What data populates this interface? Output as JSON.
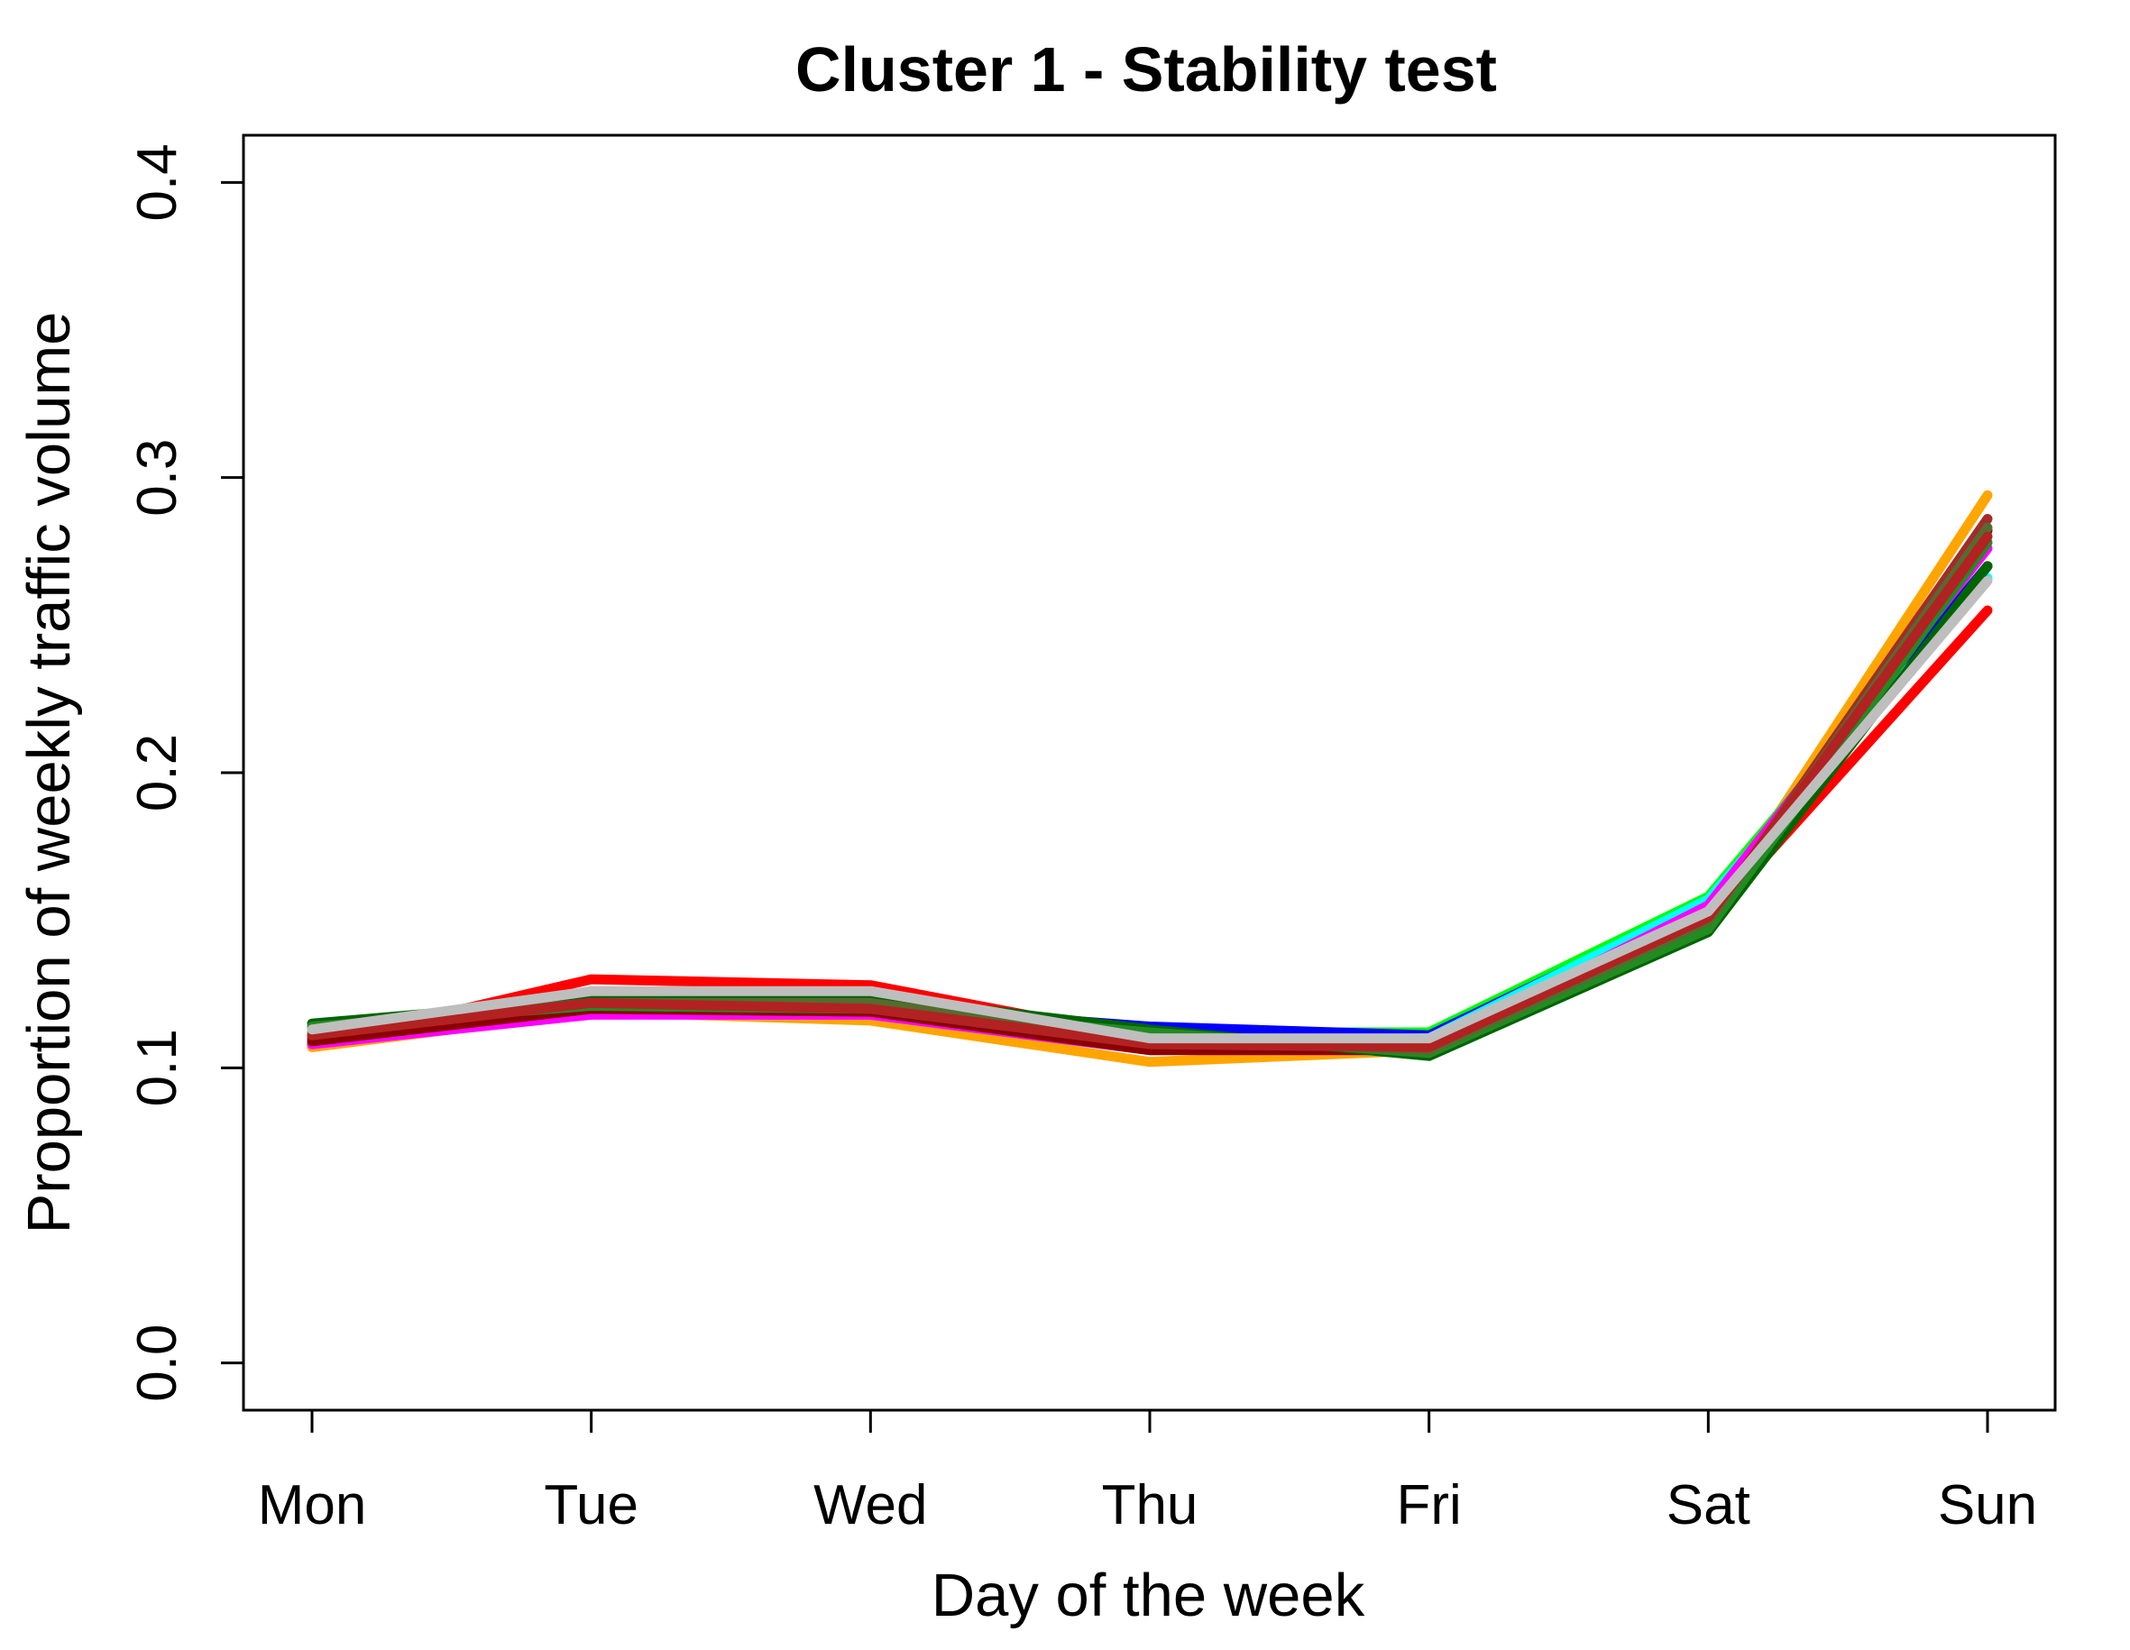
{
  "chart_data": {
    "type": "line",
    "title": "Cluster 1 - Stability test",
    "xlabel": "Day of the week",
    "ylabel": "Proportion of weekly traffic volume",
    "categories": [
      "Mon",
      "Tue",
      "Wed",
      "Thu",
      "Fri",
      "Sat",
      "Sun"
    ],
    "ylim": [
      -0.016,
      0.416
    ],
    "yticks": [
      0.0,
      0.1,
      0.2,
      0.3,
      0.4
    ],
    "ytick_labels": [
      "0.0",
      "0.1",
      "0.2",
      "0.3",
      "0.4"
    ],
    "grid": false,
    "legend": "none",
    "series": [
      {
        "color": "#FFA500",
        "values": [
          0.107,
          0.119,
          0.116,
          0.102,
          0.106,
          0.15,
          0.294
        ]
      },
      {
        "color": "#FF0000",
        "values": [
          0.108,
          0.13,
          0.128,
          0.11,
          0.105,
          0.15,
          0.255
        ]
      },
      {
        "color": "#00FF00",
        "values": [
          0.112,
          0.118,
          0.12,
          0.112,
          0.112,
          0.158,
          0.27
        ]
      },
      {
        "color": "#0000FF",
        "values": [
          0.111,
          0.12,
          0.121,
          0.114,
          0.111,
          0.156,
          0.27
        ]
      },
      {
        "color": "#00FFFF",
        "values": [
          0.11,
          0.121,
          0.121,
          0.108,
          0.11,
          0.157,
          0.266
        ]
      },
      {
        "color": "#FF00FF",
        "values": [
          0.108,
          0.118,
          0.118,
          0.106,
          0.107,
          0.155,
          0.276
        ]
      },
      {
        "color": "#A52A2A",
        "values": [
          0.11,
          0.122,
          0.121,
          0.107,
          0.107,
          0.15,
          0.286
        ]
      },
      {
        "color": "#8B0000",
        "values": [
          0.109,
          0.12,
          0.119,
          0.106,
          0.106,
          0.148,
          0.282
        ]
      },
      {
        "color": "#006400",
        "values": [
          0.115,
          0.123,
          0.124,
          0.113,
          0.104,
          0.146,
          0.27
        ]
      },
      {
        "color": "#228B22",
        "values": [
          0.114,
          0.121,
          0.12,
          0.112,
          0.105,
          0.147,
          0.278
        ]
      },
      {
        "color": "#556B2F",
        "values": [
          0.113,
          0.122,
          0.122,
          0.11,
          0.106,
          0.15,
          0.283
        ]
      },
      {
        "color": "#B22222",
        "values": [
          0.111,
          0.122,
          0.12,
          0.108,
          0.107,
          0.151,
          0.28
        ]
      },
      {
        "color": "#BEBEBE",
        "values": [
          0.113,
          0.126,
          0.126,
          0.11,
          0.11,
          0.153,
          0.265
        ]
      }
    ]
  }
}
